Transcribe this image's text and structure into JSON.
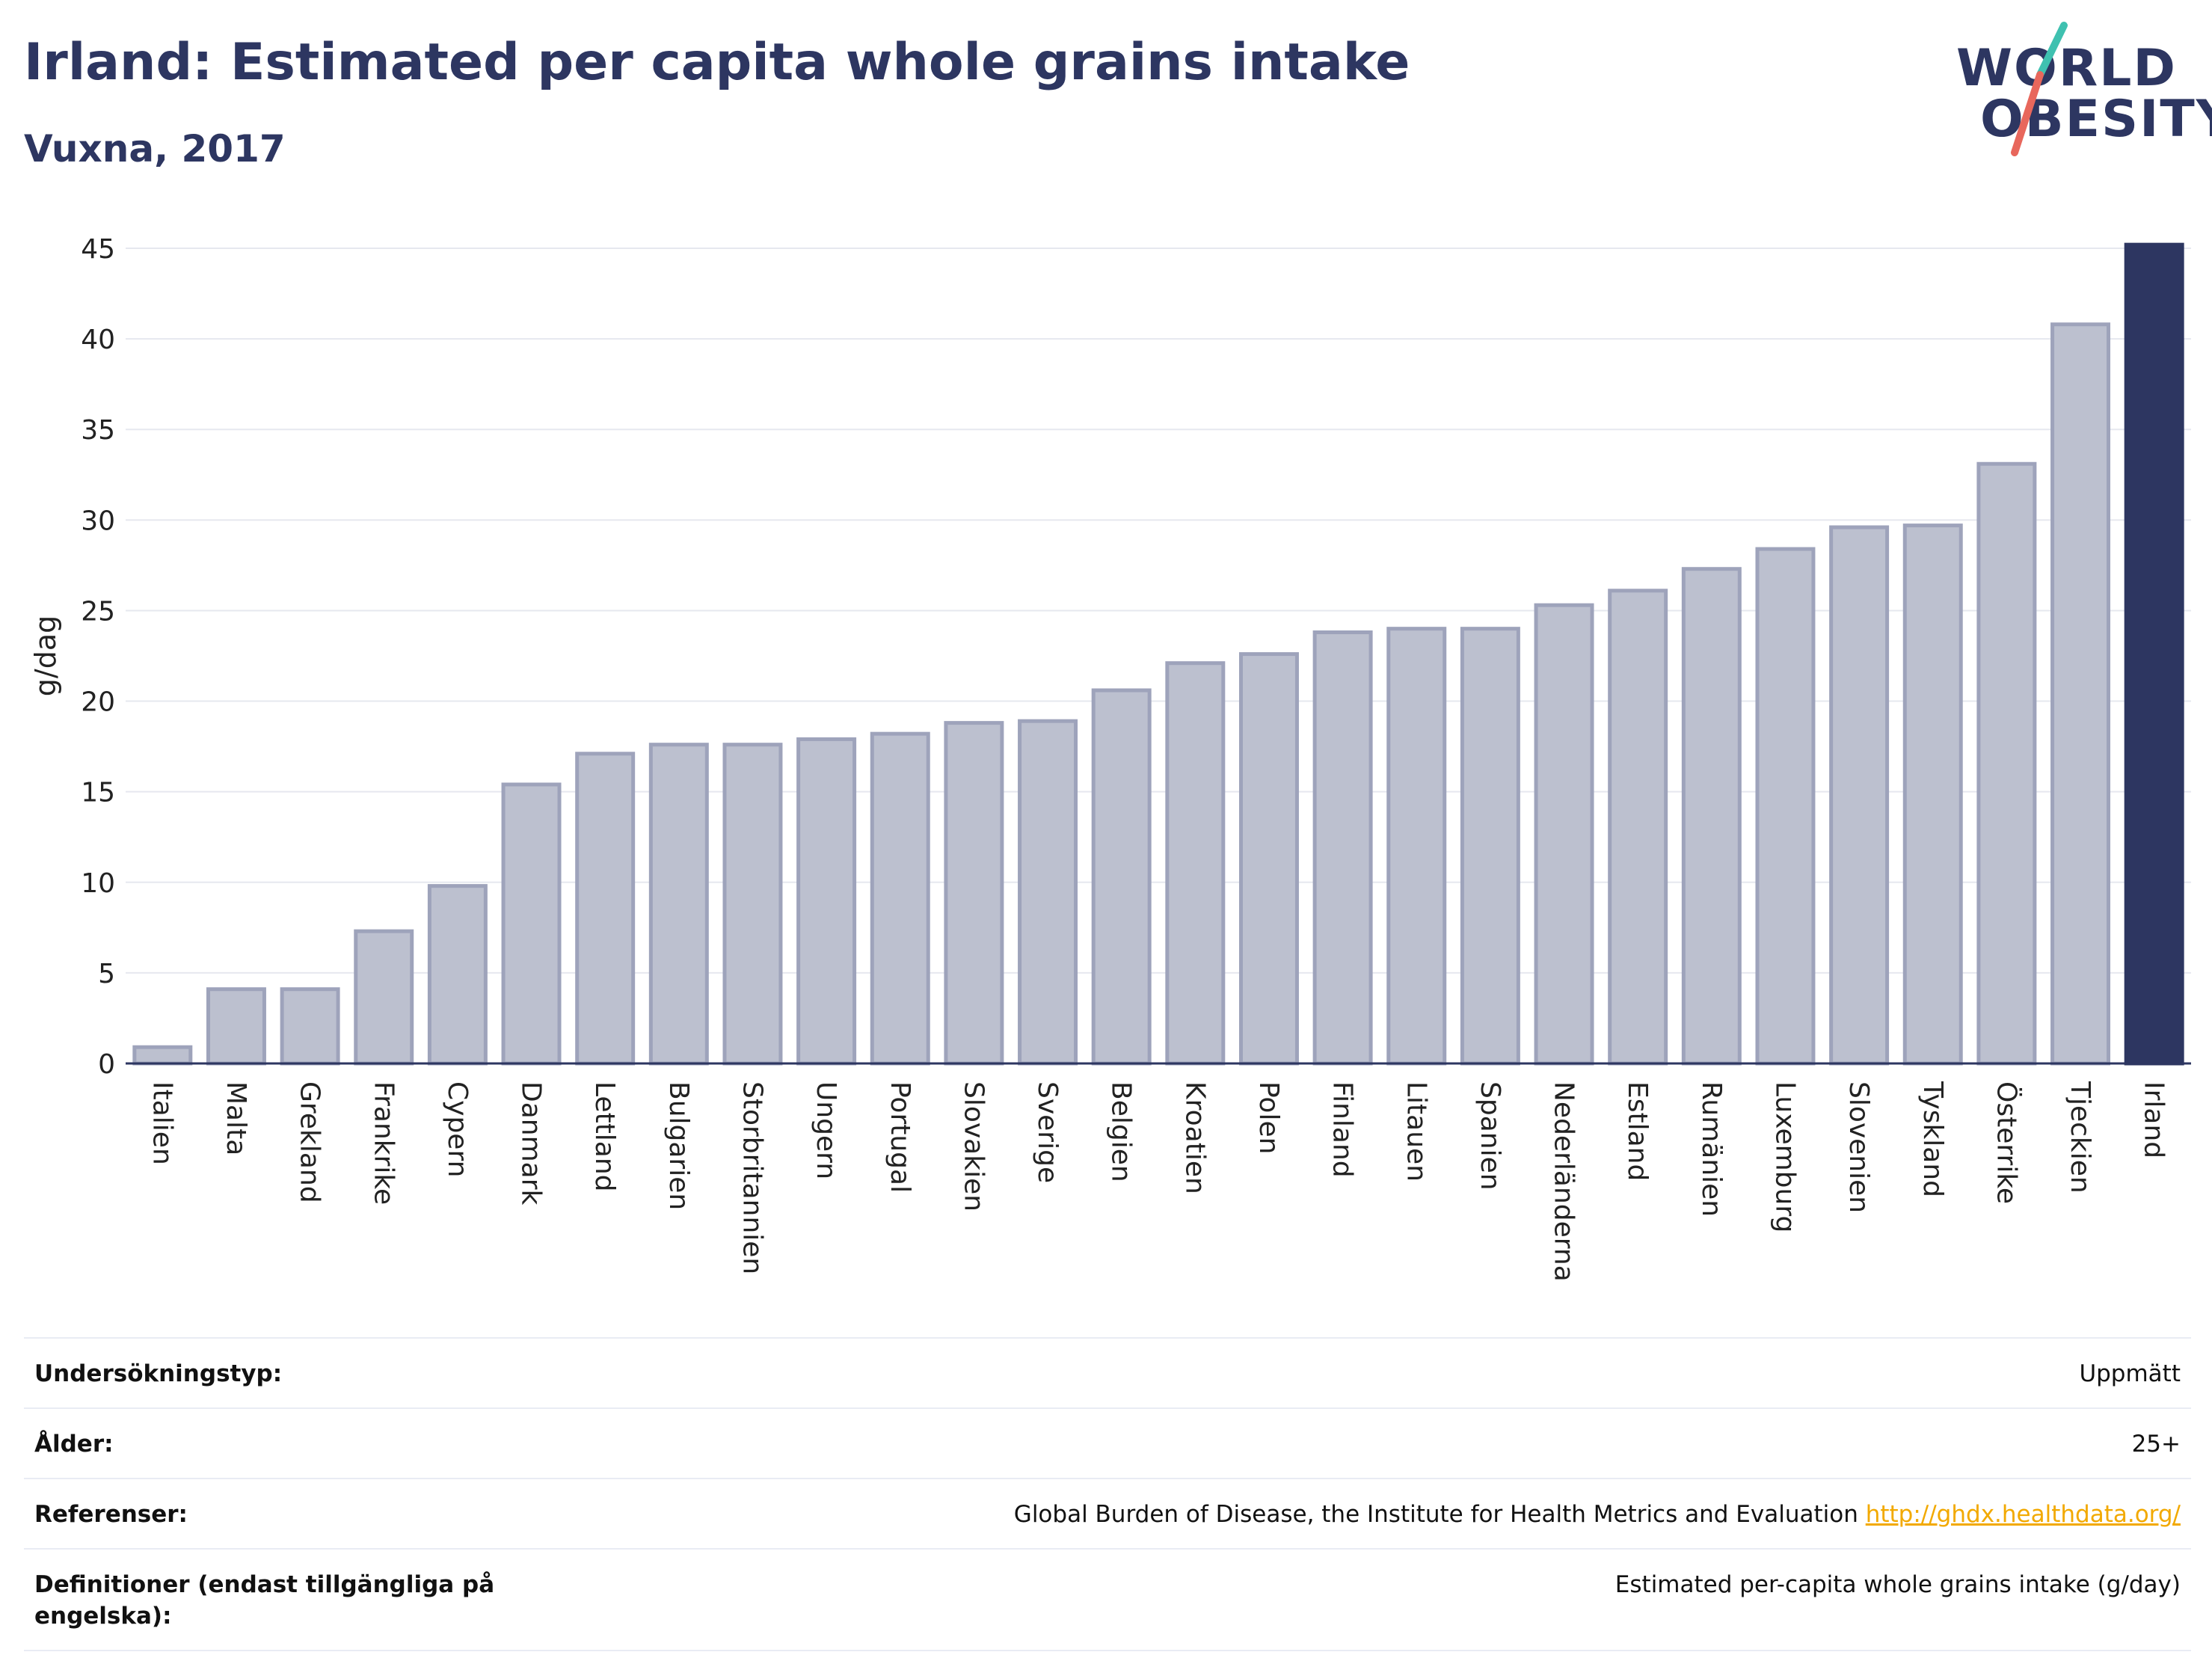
{
  "header": {
    "title": "Irland: Estimated per capita whole grains intake",
    "subtitle": "Vuxna, 2017"
  },
  "logo": {
    "line1": "WORLD",
    "line2": "OBESITY",
    "slash_colors": [
      "#3fc1b0",
      "#e8675c"
    ]
  },
  "colors": {
    "bar_fill": "#bcc0cf",
    "bar_stroke": "#9ea3bb",
    "highlight": "#2d3661",
    "grid": "#e6e8ef",
    "text": "#2d3661",
    "link": "#f2a900"
  },
  "chart_data": {
    "type": "bar",
    "ylabel": "g/dag",
    "ylim": [
      0,
      45
    ],
    "yticks": [
      0,
      5,
      10,
      15,
      20,
      25,
      30,
      35,
      40,
      45
    ],
    "grid": true,
    "highlight": "Irland",
    "categories": [
      "Italien",
      "Malta",
      "Grekland",
      "Frankrike",
      "Cypern",
      "Danmark",
      "Lettland",
      "Bulgarien",
      "Storbritannien",
      "Ungern",
      "Portugal",
      "Slovakien",
      "Sverige",
      "Belgien",
      "Kroatien",
      "Polen",
      "Finland",
      "Litauen",
      "Spanien",
      "Nederländerna",
      "Estland",
      "Rumänien",
      "Luxemburg",
      "Slovenien",
      "Tyskland",
      "Österrike",
      "Tjeckien",
      "Irland"
    ],
    "values": [
      0.9,
      4.1,
      4.1,
      7.3,
      9.8,
      15.4,
      17.1,
      17.6,
      17.6,
      17.9,
      18.2,
      18.8,
      18.9,
      20.6,
      22.1,
      22.6,
      23.8,
      24.0,
      24.0,
      25.3,
      26.1,
      27.3,
      28.4,
      29.6,
      29.7,
      33.1,
      40.8,
      45.2
    ]
  },
  "info": {
    "rows": [
      {
        "label": "Undersökningstyp:",
        "value": "Uppmätt"
      },
      {
        "label": "Ålder:",
        "value": "25+"
      },
      {
        "label": "Referenser:",
        "value": "Global Burden of Disease, the Institute for Health Metrics and Evaluation",
        "link": "http://ghdx.healthdata.org/"
      },
      {
        "label": "Definitioner (endast tillgängliga på engelska):",
        "value": "Estimated per-capita whole grains intake (g/day)"
      }
    ]
  }
}
